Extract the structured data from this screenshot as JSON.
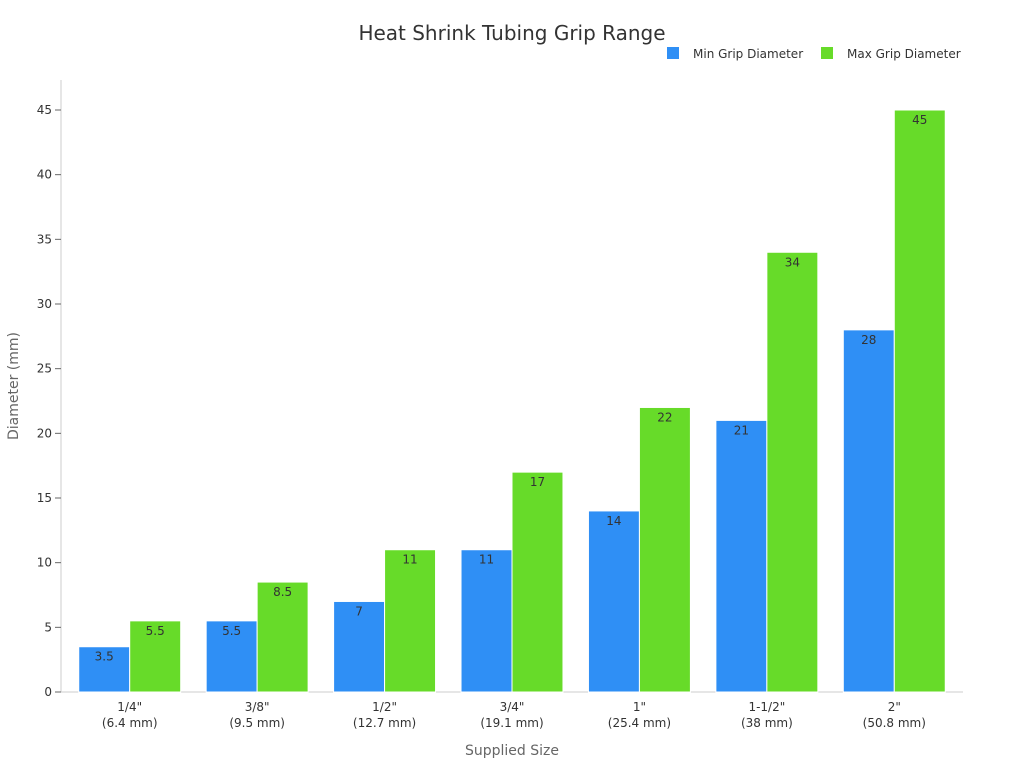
{
  "chart_data": {
    "type": "bar",
    "title": "Heat Shrink Tubing Grip Range",
    "xlabel": "Supplied Size",
    "ylabel": "Diameter (mm)",
    "ylim": [
      0,
      45
    ],
    "yticks": [
      0,
      5,
      10,
      15,
      20,
      25,
      30,
      35,
      40,
      45
    ],
    "grid": false,
    "legend_position": "top-right",
    "categories": [
      [
        "1/4\"",
        "(6.4 mm)"
      ],
      [
        "3/8\"",
        "(9.5 mm)"
      ],
      [
        "1/2\"",
        "(12.7 mm)"
      ],
      [
        "3/4\"",
        "(19.1 mm)"
      ],
      [
        "1\"",
        "(25.4 mm)"
      ],
      [
        "1-1/2\"",
        "(38 mm)"
      ],
      [
        "2\"",
        "(50.8 mm)"
      ]
    ],
    "series": [
      {
        "name": "Min Grip Diameter",
        "color": "#2f8ff5",
        "values": [
          3.5,
          5.5,
          7,
          11,
          14,
          21,
          28
        ]
      },
      {
        "name": "Max Grip Diameter",
        "color": "#67db29",
        "values": [
          5.5,
          8.5,
          11,
          17,
          22,
          34,
          45
        ]
      }
    ]
  }
}
